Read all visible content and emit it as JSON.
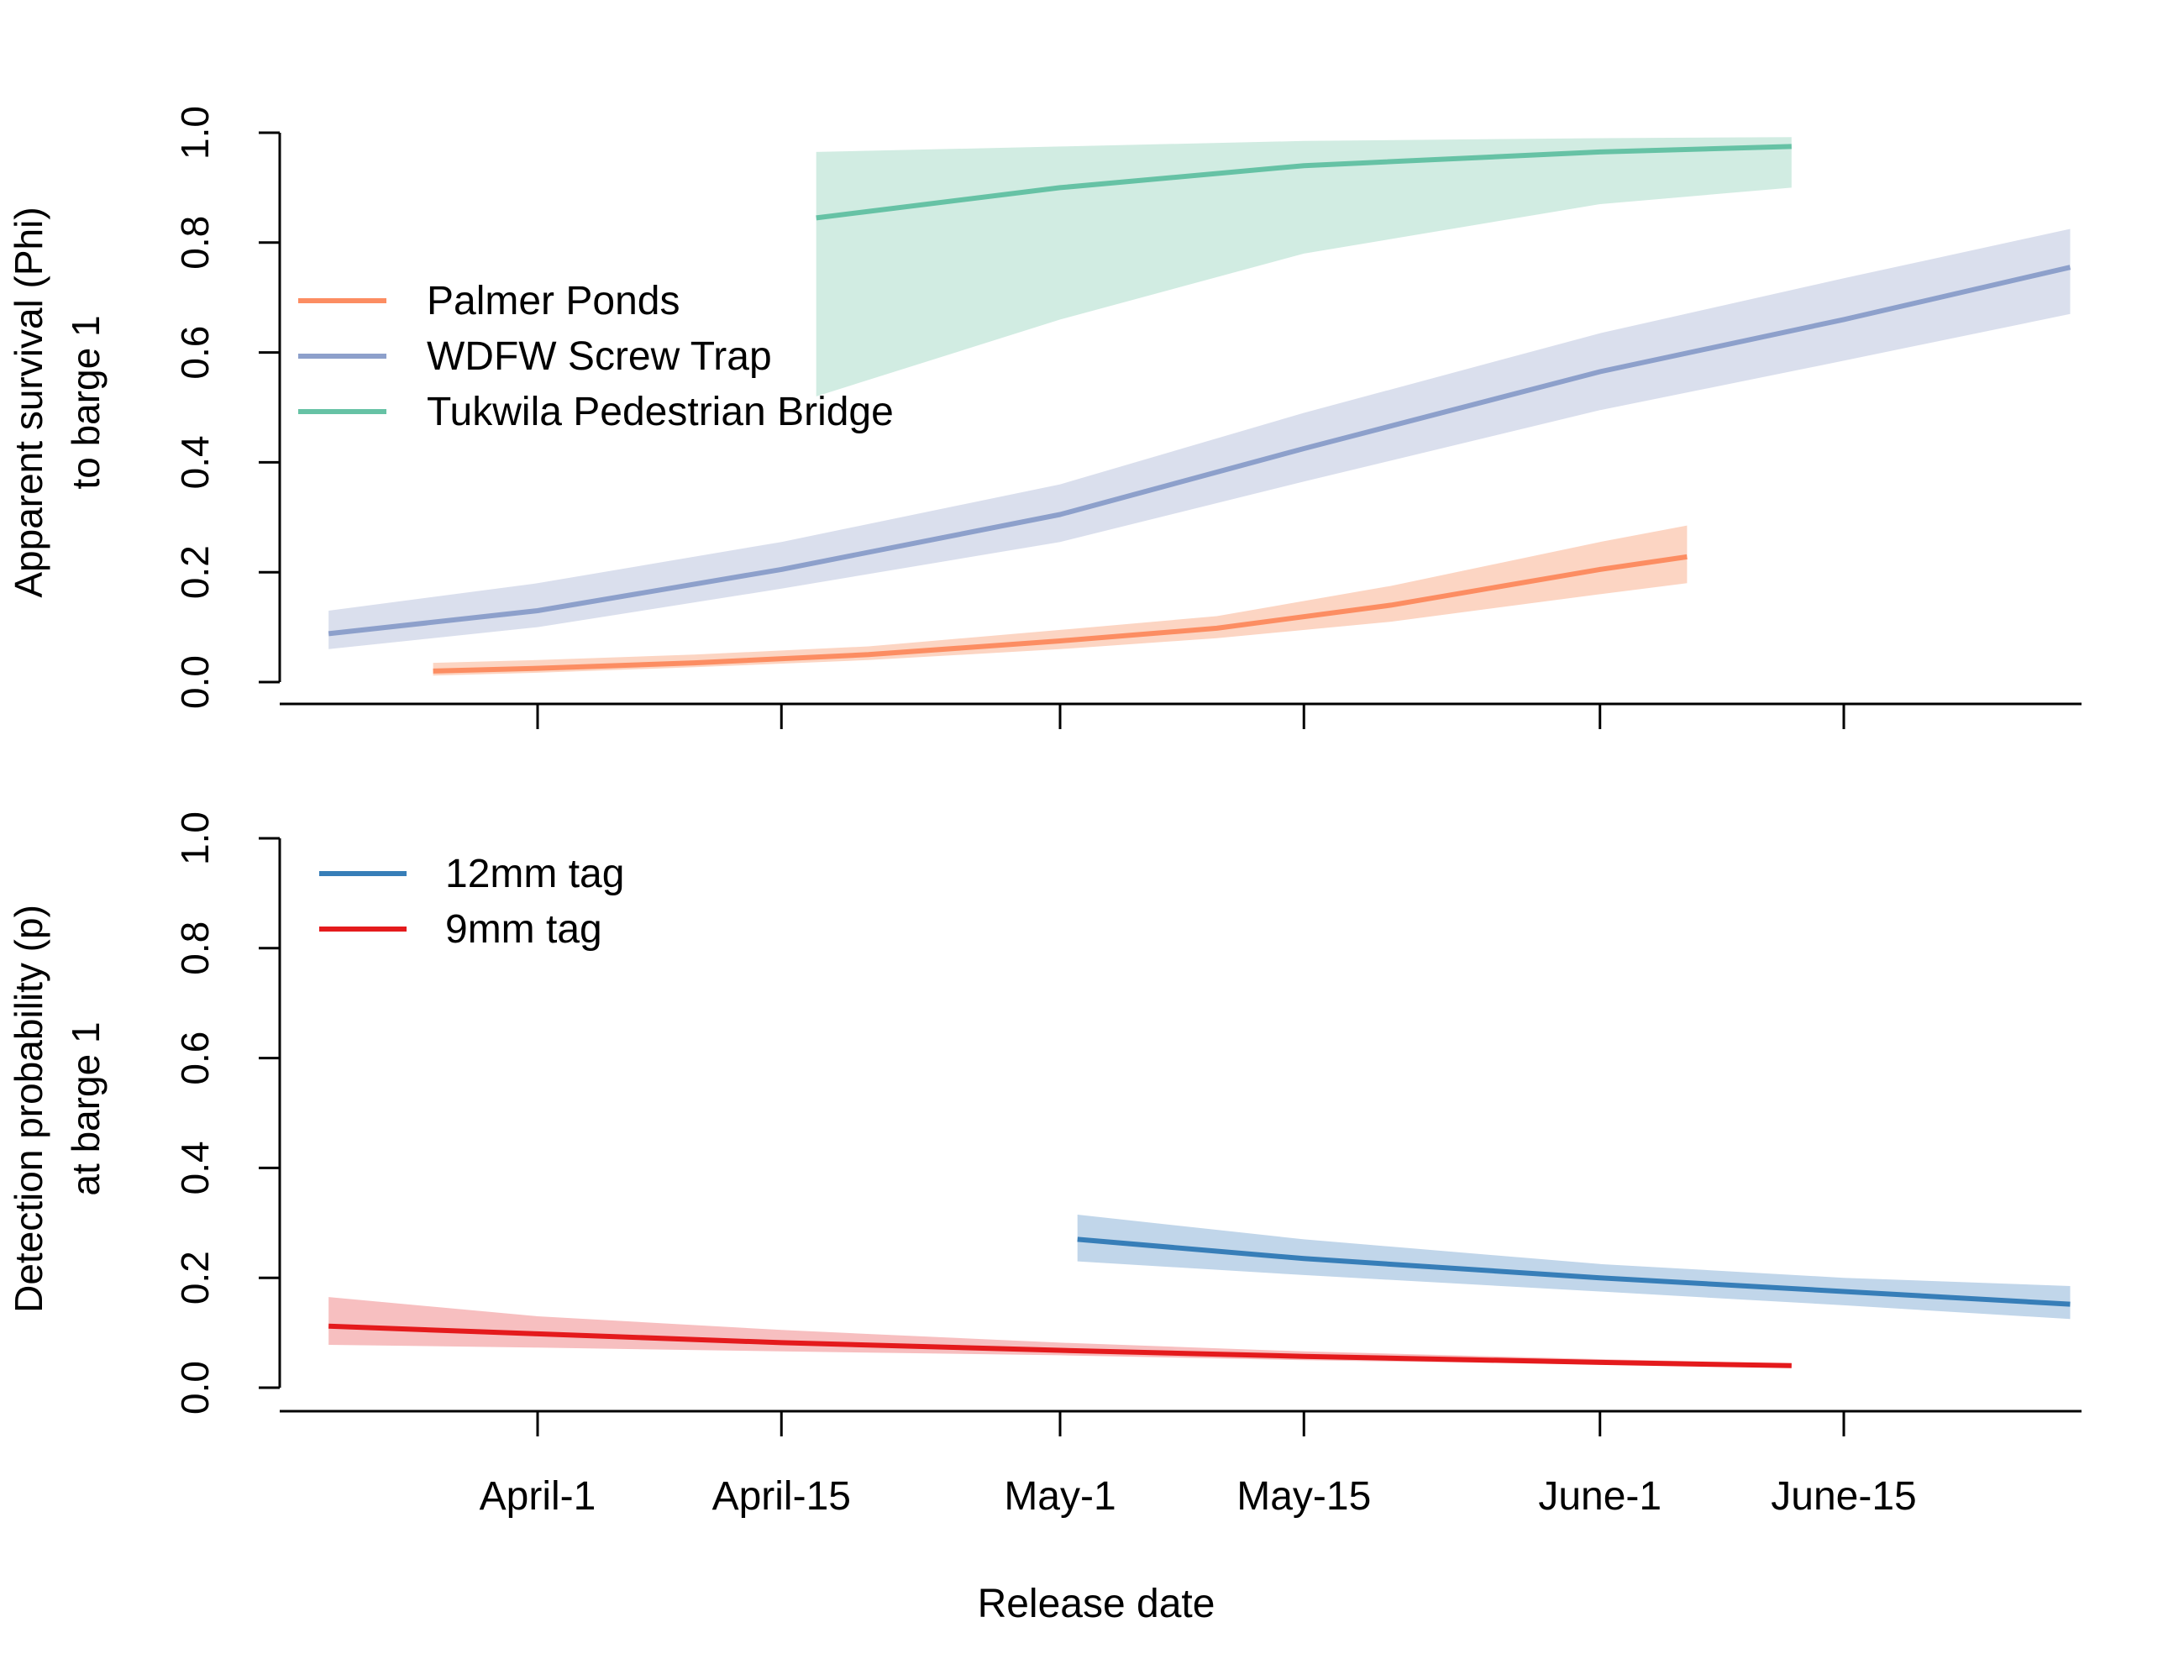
{
  "x_axis": {
    "label": "Release date",
    "tick_labels": [
      "April-1",
      "April-15",
      "May-1",
      "May-15",
      "June-1",
      "June-15"
    ]
  },
  "chart_data": [
    {
      "type": "line",
      "panel": "top",
      "ylabel_line1": "Apparent survival (Phi)",
      "ylabel_line2": "to barge 1",
      "ylim": [
        0,
        1
      ],
      "y_ticks": [
        "0.0",
        "0.2",
        "0.4",
        "0.6",
        "0.8",
        "1.0"
      ],
      "x_ticks": [
        "April-1",
        "April-15",
        "May-1",
        "May-15",
        "June-1",
        "June-15"
      ],
      "x_range": [
        "03-20",
        "06-30"
      ],
      "grid": false,
      "legend_position": "top-left",
      "series": [
        {
          "name": "Palmer Ponds",
          "color": "#fc8d62",
          "band_color": "#fcd5c3",
          "x": [
            "03-26",
            "04-01",
            "04-10",
            "04-20",
            "05-01",
            "05-10",
            "05-20",
            "06-01",
            "06-06"
          ],
          "y": [
            0.02,
            0.025,
            0.035,
            0.05,
            0.075,
            0.098,
            0.14,
            0.205,
            0.228
          ],
          "lower": [
            0.012,
            0.017,
            0.027,
            0.04,
            0.06,
            0.08,
            0.11,
            0.16,
            0.18
          ],
          "upper": [
            0.035,
            0.04,
            0.05,
            0.065,
            0.095,
            0.12,
            0.175,
            0.255,
            0.285
          ]
        },
        {
          "name": "WDFW Screw Trap",
          "color": "#8da0cb",
          "band_color": "#dadfed",
          "x": [
            "03-20",
            "04-01",
            "04-15",
            "05-01",
            "05-15",
            "06-01",
            "06-15",
            "06-28"
          ],
          "y": [
            0.088,
            0.13,
            0.205,
            0.305,
            0.425,
            0.565,
            0.66,
            0.755
          ],
          "lower": [
            0.06,
            0.1,
            0.17,
            0.255,
            0.365,
            0.495,
            0.585,
            0.67
          ],
          "upper": [
            0.13,
            0.18,
            0.255,
            0.36,
            0.49,
            0.635,
            0.735,
            0.825
          ]
        },
        {
          "name": "Tukwila Pedestrian Bridge",
          "color": "#66c2a5",
          "band_color": "#d1ece2",
          "x": [
            "04-17",
            "05-01",
            "05-15",
            "06-01",
            "06-12"
          ],
          "y": [
            0.845,
            0.9,
            0.94,
            0.965,
            0.975
          ],
          "lower": [
            0.52,
            0.66,
            0.78,
            0.87,
            0.9
          ],
          "upper": [
            0.965,
            0.975,
            0.985,
            0.99,
            0.992
          ]
        }
      ]
    },
    {
      "type": "line",
      "panel": "bottom",
      "ylabel_line1": "Detection probability (p)",
      "ylabel_line2": "at barge 1",
      "ylim": [
        0,
        1
      ],
      "y_ticks": [
        "0.0",
        "0.2",
        "0.4",
        "0.6",
        "0.8",
        "1.0"
      ],
      "x_ticks": [
        "April-1",
        "April-15",
        "May-1",
        "May-15",
        "June-1",
        "June-15"
      ],
      "x_range": [
        "03-20",
        "06-30"
      ],
      "grid": false,
      "legend_position": "top-left",
      "series": [
        {
          "name": "12mm tag",
          "color": "#377eb8",
          "band_color": "#c1d6ea",
          "x": [
            "05-02",
            "05-15",
            "06-01",
            "06-15",
            "06-28"
          ],
          "y": [
            0.27,
            0.235,
            0.2,
            0.175,
            0.152
          ],
          "lower": [
            0.23,
            0.205,
            0.175,
            0.15,
            0.125
          ],
          "upper": [
            0.315,
            0.27,
            0.225,
            0.2,
            0.185
          ]
        },
        {
          "name": "9mm tag",
          "color": "#e41a1c",
          "band_color": "#f7bfc0",
          "x": [
            "03-20",
            "04-01",
            "04-15",
            "05-01",
            "05-15",
            "06-01",
            "06-12"
          ],
          "y": [
            0.112,
            0.098,
            0.082,
            0.068,
            0.057,
            0.046,
            0.04
          ],
          "lower": [
            0.078,
            0.073,
            0.066,
            0.059,
            0.05,
            0.042,
            0.037
          ],
          "upper": [
            0.165,
            0.13,
            0.105,
            0.082,
            0.066,
            0.052,
            0.044
          ]
        }
      ]
    }
  ]
}
